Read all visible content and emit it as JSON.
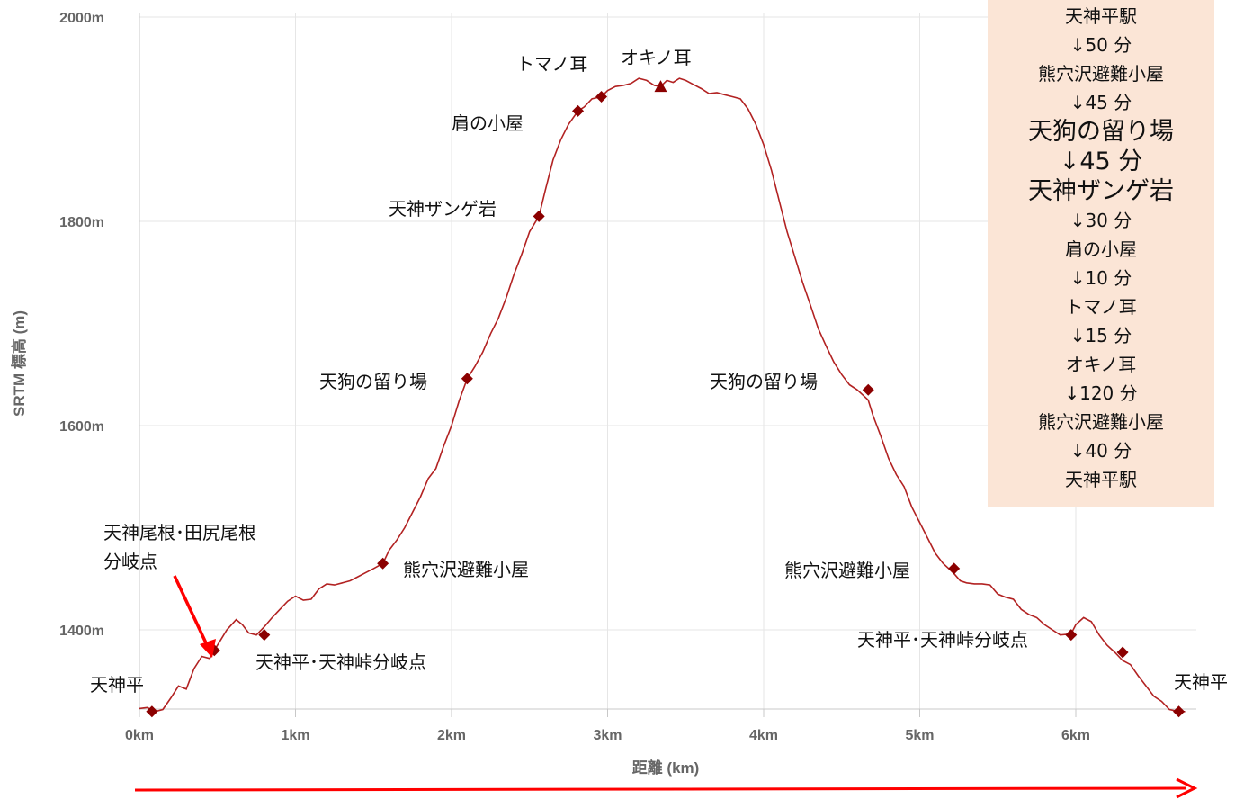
{
  "chart_data": {
    "type": "line",
    "xlabel": "距離 (km)",
    "ylabel": "SRTM 標高 (m)",
    "x_ticks": [
      "0km",
      "1km",
      "2km",
      "3km",
      "4km",
      "5km",
      "6km"
    ],
    "y_ticks": [
      "1400m",
      "1600m",
      "1800m",
      "2000m"
    ],
    "xlim": [
      0,
      6.7
    ],
    "ylim": [
      1320,
      2000
    ],
    "grid": true,
    "series": [
      {
        "x": [
          0.0,
          0.05,
          0.1,
          0.15,
          0.2,
          0.25,
          0.3,
          0.35,
          0.4,
          0.45,
          0.48,
          0.52,
          0.56,
          0.62,
          0.66,
          0.7,
          0.75,
          0.8,
          0.85,
          0.9,
          0.95,
          1.0,
          1.05,
          1.1,
          1.15,
          1.2,
          1.25,
          1.3,
          1.35,
          1.4,
          1.45,
          1.5,
          1.56,
          1.6,
          1.65,
          1.7,
          1.75,
          1.8,
          1.85,
          1.9,
          1.95,
          2.0,
          2.05,
          2.1,
          2.15,
          2.2,
          2.25,
          2.3,
          2.35,
          2.4,
          2.45,
          2.5,
          2.56,
          2.6,
          2.65,
          2.7,
          2.75,
          2.81,
          2.85,
          2.9,
          2.96,
          3.0,
          3.05,
          3.1,
          3.15,
          3.2,
          3.25,
          3.3,
          3.34,
          3.38,
          3.42,
          3.46,
          3.5,
          3.55,
          3.6,
          3.65,
          3.7,
          3.75,
          3.8,
          3.85,
          3.9,
          3.95,
          4.0,
          4.05,
          4.1,
          4.15,
          4.2,
          4.25,
          4.3,
          4.35,
          4.4,
          4.45,
          4.5,
          4.55,
          4.6,
          4.67,
          4.7,
          4.75,
          4.8,
          4.85,
          4.9,
          4.95,
          5.0,
          5.05,
          5.1,
          5.15,
          5.2,
          5.22,
          5.26,
          5.3,
          5.35,
          5.4,
          5.45,
          5.5,
          5.55,
          5.6,
          5.65,
          5.7,
          5.75,
          5.8,
          5.85,
          5.9,
          5.97,
          6.0,
          6.05,
          6.1,
          6.15,
          6.2,
          6.25,
          6.3,
          6.35,
          6.4,
          6.45,
          6.5,
          6.55,
          6.6,
          6.66,
          6.7
        ],
        "y": [
          1323,
          1324,
          1320,
          1322,
          1333,
          1345,
          1342,
          1362,
          1374,
          1372,
          1380,
          1390,
          1400,
          1410,
          1405,
          1397,
          1395,
          1403,
          1412,
          1420,
          1428,
          1433,
          1429,
          1430,
          1440,
          1445,
          1444,
          1446,
          1448,
          1452,
          1456,
          1460,
          1465,
          1478,
          1488,
          1500,
          1515,
          1530,
          1548,
          1558,
          1580,
          1600,
          1625,
          1646,
          1658,
          1672,
          1690,
          1705,
          1725,
          1748,
          1768,
          1790,
          1805,
          1830,
          1860,
          1880,
          1895,
          1908,
          1912,
          1920,
          1922,
          1928,
          1932,
          1933,
          1935,
          1940,
          1938,
          1933,
          1932,
          1938,
          1936,
          1940,
          1938,
          1934,
          1930,
          1925,
          1926,
          1924,
          1922,
          1920,
          1910,
          1895,
          1875,
          1850,
          1820,
          1790,
          1765,
          1740,
          1718,
          1695,
          1678,
          1662,
          1650,
          1640,
          1635,
          1625,
          1610,
          1590,
          1568,
          1552,
          1540,
          1520,
          1505,
          1490,
          1475,
          1465,
          1458,
          1455,
          1448,
          1446,
          1445,
          1445,
          1444,
          1435,
          1432,
          1430,
          1420,
          1415,
          1412,
          1405,
          1400,
          1395,
          1396,
          1405,
          1412,
          1408,
          1395,
          1385,
          1378,
          1370,
          1366,
          1355,
          1345,
          1335,
          1330,
          1322,
          1320,
          1320
        ]
      }
    ],
    "waypoints": [
      {
        "label": "天神平",
        "x": 0.08,
        "y": 1320,
        "marker": "diamond"
      },
      {
        "label": "天神尾根･田尻尾根\n分岐点",
        "x": 0.48,
        "y": 1380,
        "marker": "diamond"
      },
      {
        "label": "天神平･天神峠分岐点",
        "x": 0.8,
        "y": 1395,
        "marker": "diamond"
      },
      {
        "label": "熊穴沢避難小屋",
        "x": 1.56,
        "y": 1465,
        "marker": "diamond"
      },
      {
        "label": "天狗の留り場",
        "x": 2.1,
        "y": 1646,
        "marker": "diamond"
      },
      {
        "label": "天神ザンゲ岩",
        "x": 2.56,
        "y": 1805,
        "marker": "diamond"
      },
      {
        "label": "肩の小屋",
        "x": 2.81,
        "y": 1908,
        "marker": "diamond"
      },
      {
        "label": "トマノ耳",
        "x": 2.96,
        "y": 1922,
        "marker": "diamond"
      },
      {
        "label": "オキノ耳",
        "x": 3.34,
        "y": 1932,
        "marker": "triangle"
      },
      {
        "label": "天狗の留り場",
        "x": 4.67,
        "y": 1635,
        "marker": "diamond"
      },
      {
        "label": "熊穴沢避難小屋",
        "x": 5.22,
        "y": 1460,
        "marker": "diamond"
      },
      {
        "label": "天神平･天神峠分岐点",
        "x": 5.97,
        "y": 1395,
        "marker": "diamond"
      },
      {
        "label": "",
        "x": 6.3,
        "y": 1378,
        "marker": "diamond"
      },
      {
        "label": "天神平",
        "x": 6.66,
        "y": 1320,
        "marker": "diamond"
      }
    ]
  },
  "schedule": [
    {
      "text": "天神平駅",
      "big": false
    },
    {
      "text": "↓50 分",
      "big": false
    },
    {
      "text": "熊穴沢避難小屋",
      "big": false
    },
    {
      "text": "↓45 分",
      "big": false
    },
    {
      "text": "天狗の留り場",
      "big": true
    },
    {
      "text": "↓45 分",
      "big": true
    },
    {
      "text": "天神ザンゲ岩",
      "big": true
    },
    {
      "text": "↓30 分",
      "big": false
    },
    {
      "text": "肩の小屋",
      "big": false
    },
    {
      "text": "↓10 分",
      "big": false
    },
    {
      "text": "トマノ耳",
      "big": false
    },
    {
      "text": "↓15 分",
      "big": false
    },
    {
      "text": "オキノ耳",
      "big": false
    },
    {
      "text": "↓120 分",
      "big": false
    },
    {
      "text": "熊穴沢避難小屋",
      "big": false
    },
    {
      "text": "↓40 分",
      "big": false
    },
    {
      "text": "天神平駅",
      "big": false
    }
  ],
  "colors": {
    "line": "#b22222",
    "marker": "#8b0000",
    "grid": "#e6e6e6",
    "axis_text": "#666666",
    "arrow": "#ff0000",
    "schedule_bg": "#fbe5d6"
  }
}
